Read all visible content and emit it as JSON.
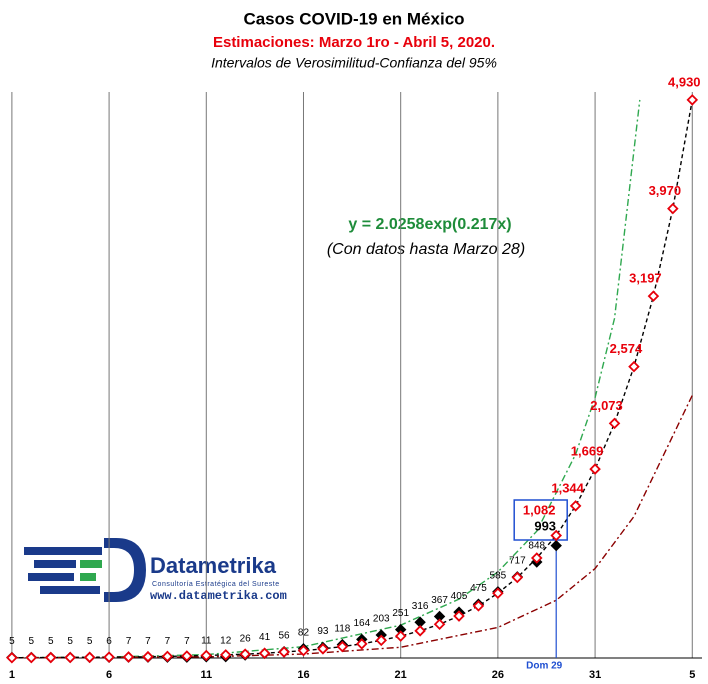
{
  "chart_data": {
    "type": "scatter",
    "title": "Casos COVID-19 en México",
    "subtitle": "Estimaciones: Marzo 1ro - Abril 5, 2020.",
    "note": "Intervalos de Verosimilitud-Confianza del 95%",
    "annotations": {
      "equation": "y = 2.0258exp(0.217x)",
      "equation_note": "(Con datos hasta Marzo 28)",
      "marker": "Dom 29",
      "marker_x": 29
    },
    "x": [
      1,
      2,
      3,
      4,
      5,
      6,
      7,
      8,
      9,
      10,
      11,
      12,
      13,
      14,
      15,
      16,
      17,
      18,
      19,
      20,
      21,
      22,
      23,
      24,
      25,
      26,
      27,
      28,
      29,
      30,
      31,
      32,
      33,
      34,
      35,
      36
    ],
    "xlim": [
      0.8,
      36.5
    ],
    "xticks": [
      1,
      6,
      11,
      16,
      21,
      26,
      31,
      {
        "value": 36,
        "label": "5"
      }
    ],
    "ylim": [
      0,
      5000
    ],
    "grid": true,
    "series": [
      {
        "role": "observed",
        "color": "#000000",
        "values": [
          5,
          5,
          5,
          5,
          5,
          6,
          7,
          7,
          7,
          7,
          11,
          12,
          26,
          41,
          56,
          82,
          93,
          118,
          164,
          203,
          251,
          316,
          367,
          405,
          475,
          585,
          717,
          848,
          993,
          null,
          null,
          null,
          null,
          null,
          null,
          null
        ]
      },
      {
        "role": "estimate",
        "color": "#e8000b",
        "values": [
          2.5,
          3.1,
          3.9,
          4.8,
          6,
          7.5,
          9.3,
          11.5,
          14.3,
          17.8,
          22.1,
          27.4,
          34.1,
          42.3,
          52.6,
          65.3,
          81.1,
          100.8,
          125.2,
          155.6,
          193.3,
          240.1,
          298.3,
          370.6,
          460.5,
          572.1,
          710.8,
          883.1,
          1082,
          1344,
          1669,
          2073,
          2574,
          3197,
          3970,
          4930
        ],
        "value_labels": [
          null,
          null,
          null,
          null,
          null,
          null,
          null,
          null,
          null,
          null,
          null,
          null,
          null,
          null,
          null,
          null,
          null,
          null,
          null,
          null,
          null,
          null,
          null,
          null,
          null,
          null,
          null,
          null,
          "1,082",
          "1,344",
          "1,669",
          "2,073",
          "2,574",
          "3,197",
          "3,970",
          "4,930"
        ]
      },
      {
        "role": "upper",
        "color": "#2fa84f",
        "x": [
          1,
          6,
          11,
          16,
          21,
          24,
          26,
          28,
          30,
          31,
          32,
          33.3
        ],
        "values": [
          3,
          9,
          30,
          100,
          290,
          520,
          760,
          1120,
          1800,
          2300,
          3000,
          4930
        ]
      },
      {
        "role": "lower",
        "color": "#8b0000",
        "x": [
          1,
          11,
          16,
          21,
          26,
          29,
          31,
          33,
          36
        ],
        "values": [
          1,
          10,
          35,
          95,
          270,
          510,
          790,
          1250,
          2320
        ]
      }
    ]
  },
  "logo": {
    "name": "Datametrika",
    "tagline": "Consultoría Estratégica del Sureste",
    "url": "www.datametrika.com"
  }
}
